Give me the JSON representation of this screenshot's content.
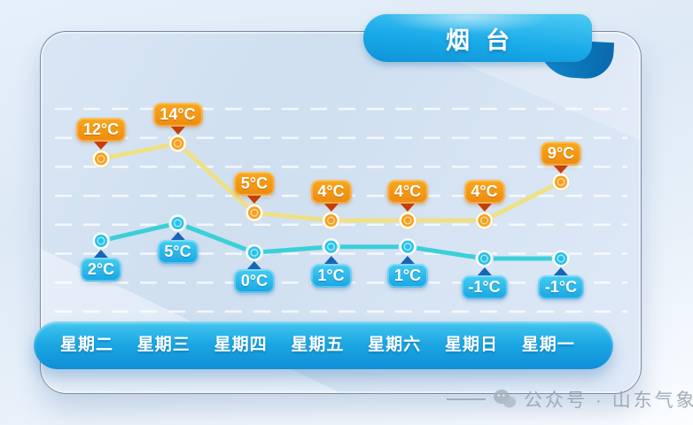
{
  "title": "烟台",
  "watermark": {
    "icon": "wechat-icon",
    "text": "公众号 · 山东气象"
  },
  "colors": {
    "high_line": "#eee083",
    "high_badge": "#f0940f",
    "high_pointer": "#c63d05",
    "high_marker": "#f6a01c",
    "low_line": "#3bcfd9",
    "low_badge": "#29bce9",
    "low_pointer": "#1a64b6",
    "low_marker": "#27c2ea",
    "ribbon_blue": "#18a9e8",
    "day_bar_blue": "#1ba7e3"
  },
  "chart_data": {
    "type": "line",
    "title": "烟台",
    "categories": [
      "星期二",
      "星期三",
      "星期四",
      "星期五",
      "星期六",
      "星期日",
      "星期一"
    ],
    "series": [
      {
        "name": "high-temperature",
        "unit": "°C",
        "values": [
          12,
          14,
          5,
          4,
          4,
          4,
          9
        ],
        "labels": [
          "12°C",
          "14°C",
          "5°C",
          "4°C",
          "4°C",
          "4°C",
          "9°C"
        ],
        "color": "#eee083"
      },
      {
        "name": "low-temperature",
        "unit": "°C",
        "values": [
          2,
          5,
          0,
          1,
          1,
          -1,
          -1
        ],
        "labels": [
          "2°C",
          "5°C",
          "0°C",
          "1°C",
          "1°C",
          "-1°C",
          "-1°C"
        ],
        "color": "#3bcfd9"
      }
    ],
    "xlabel": "",
    "ylabel": "",
    "legend": false,
    "grid": "horizontal-dashed-white"
  }
}
